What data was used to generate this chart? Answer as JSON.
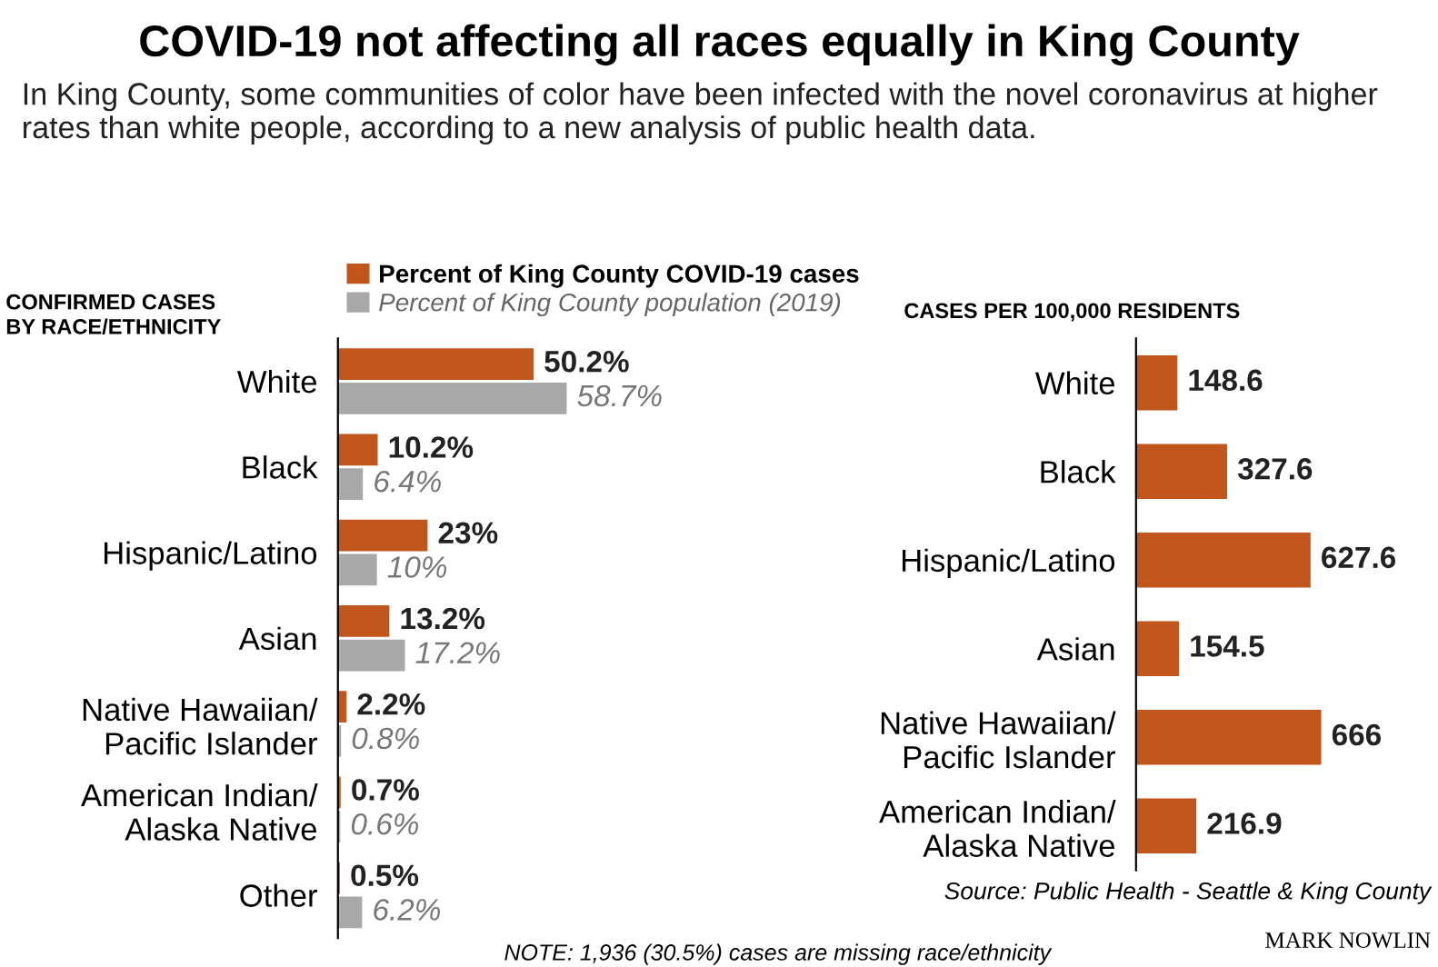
{
  "chart_data": [
    {
      "type": "bar",
      "orientation": "horizontal",
      "title": "COVID-19 not affecting all races equally in King County",
      "subtitle": "In King County, some communities of color have been infected with the novel coronavirus at higher rates than white people, according to a new analysis of public health data.",
      "ylabel": "CONFIRMED CASES\nBY RACE/ETHNICITY",
      "categories": [
        "White",
        "Black",
        "Hispanic/Latino",
        "Asian",
        "Native Hawaiian/\nPacific Islander",
        "American Indian/\nAlaska Native",
        "Other"
      ],
      "series": [
        {
          "name": "Percent of King County COVID-19 cases",
          "color": "#c0561b",
          "values": [
            50.2,
            10.2,
            23,
            13.2,
            2.2,
            0.7,
            0.5
          ],
          "value_labels": [
            "50.2%",
            "10.2%",
            "23%",
            "13.2%",
            "2.2%",
            "0.7%",
            "0.5%"
          ]
        },
        {
          "name": "Percent of King County population (2019)",
          "color": "#a8a8a8",
          "values": [
            58.7,
            6.4,
            10,
            17.2,
            0.8,
            0.6,
            6.2
          ],
          "value_labels": [
            "58.7%",
            "6.4%",
            "10%",
            "17.2%",
            "0.8%",
            "0.6%",
            "6.2%"
          ]
        }
      ],
      "legend": "top",
      "annotations": [
        "NOTE: 1,936 (30.5%) cases are missing race/ethnicity"
      ]
    },
    {
      "type": "bar",
      "orientation": "horizontal",
      "title": "CASES PER 100,000 RESIDENTS",
      "categories": [
        "White",
        "Black",
        "Hispanic/Latino",
        "Asian",
        "Native Hawaiian/\nPacific Islander",
        "American Indian/\nAlaska Native"
      ],
      "values": [
        148.6,
        327.6,
        627.6,
        154.5,
        666,
        216.9
      ],
      "color": "#c0561b",
      "data_labels": true,
      "annotations": [
        "Source: Public Health - Seattle & King County",
        "MARK NOWLIN"
      ]
    }
  ]
}
